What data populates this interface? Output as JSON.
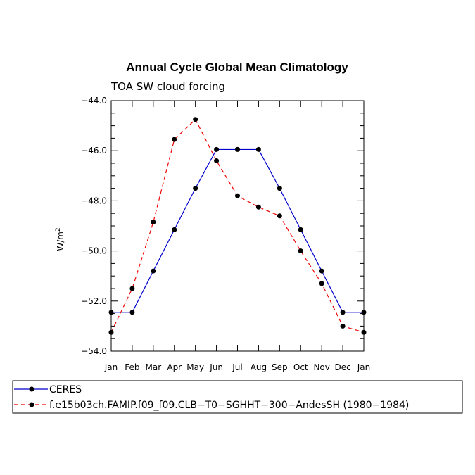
{
  "chart_data": {
    "type": "line",
    "title": "Annual Cycle Global Mean Climatology",
    "subtitle": "TOA SW cloud forcing",
    "ylabel_main": "W/m",
    "ylabel_sup": "2",
    "xlabel": "",
    "categories": [
      "Jan",
      "Feb",
      "Mar",
      "Apr",
      "May",
      "Jun",
      "Jul",
      "Aug",
      "Sep",
      "Oct",
      "Nov",
      "Dec",
      "Jan"
    ],
    "ylim": [
      -54.0,
      -44.0
    ],
    "yticks": [
      -54.0,
      -52.0,
      -50.0,
      -48.0,
      -46.0,
      -44.0
    ],
    "ytick_labels": [
      "−54.0",
      "−52.0",
      "−50.0",
      "−48.0",
      "−46.0",
      "−44.0"
    ],
    "series": [
      {
        "name": "CERES",
        "color": "#0000cc",
        "dash": "solid",
        "values": [
          -52.45,
          -52.45,
          -50.8,
          -49.15,
          -47.5,
          -45.95,
          -45.95,
          -45.95,
          -47.5,
          -49.15,
          -50.8,
          -52.45,
          -52.45
        ]
      },
      {
        "name": "f.e15b03ch.FAMIP.f09_f09.CLB−T0−SGHHT−300−AndesSH (1980−1984)",
        "color": "#ee0000",
        "dash": "dashed",
        "values": [
          -53.25,
          -51.5,
          -48.85,
          -45.55,
          -44.75,
          -46.4,
          -47.8,
          -48.25,
          -48.6,
          -50.0,
          -51.3,
          -53.0,
          -53.25
        ]
      }
    ],
    "legend_position": "bottom"
  }
}
